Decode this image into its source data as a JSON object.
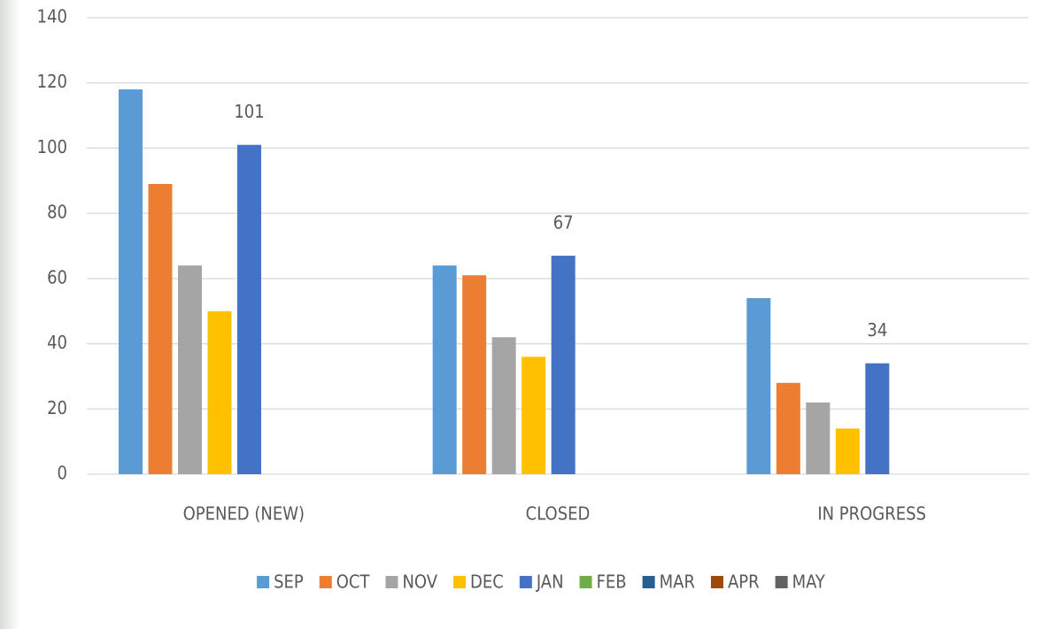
{
  "chart_data": {
    "type": "bar",
    "categories": [
      "OPENED (NEW)",
      "CLOSED",
      "IN PROGRESS"
    ],
    "series": [
      {
        "name": "SEP",
        "color": "#5b9bd5",
        "values": [
          118,
          64,
          54
        ]
      },
      {
        "name": "OCT",
        "color": "#ed7d31",
        "values": [
          89,
          61,
          28
        ]
      },
      {
        "name": "NOV",
        "color": "#a5a5a5",
        "values": [
          64,
          42,
          22
        ]
      },
      {
        "name": "DEC",
        "color": "#ffc000",
        "values": [
          50,
          36,
          14
        ]
      },
      {
        "name": "JAN",
        "color": "#4472c4",
        "values": [
          101,
          67,
          34
        ],
        "value_labels": [
          "101",
          "67",
          "34"
        ]
      },
      {
        "name": "FEB",
        "color": "#70ad47",
        "values": [
          null,
          null,
          null
        ]
      },
      {
        "name": "MAR",
        "color": "#255e91",
        "values": [
          null,
          null,
          null
        ]
      },
      {
        "name": "APR",
        "color": "#9e480e",
        "values": [
          null,
          null,
          null
        ]
      },
      {
        "name": "MAY",
        "color": "#636363",
        "values": [
          null,
          null,
          null
        ]
      }
    ],
    "ylim": [
      0,
      140
    ],
    "yticks": [
      0,
      20,
      40,
      60,
      80,
      100,
      120,
      140
    ],
    "grid": true,
    "legend": "bottom"
  }
}
